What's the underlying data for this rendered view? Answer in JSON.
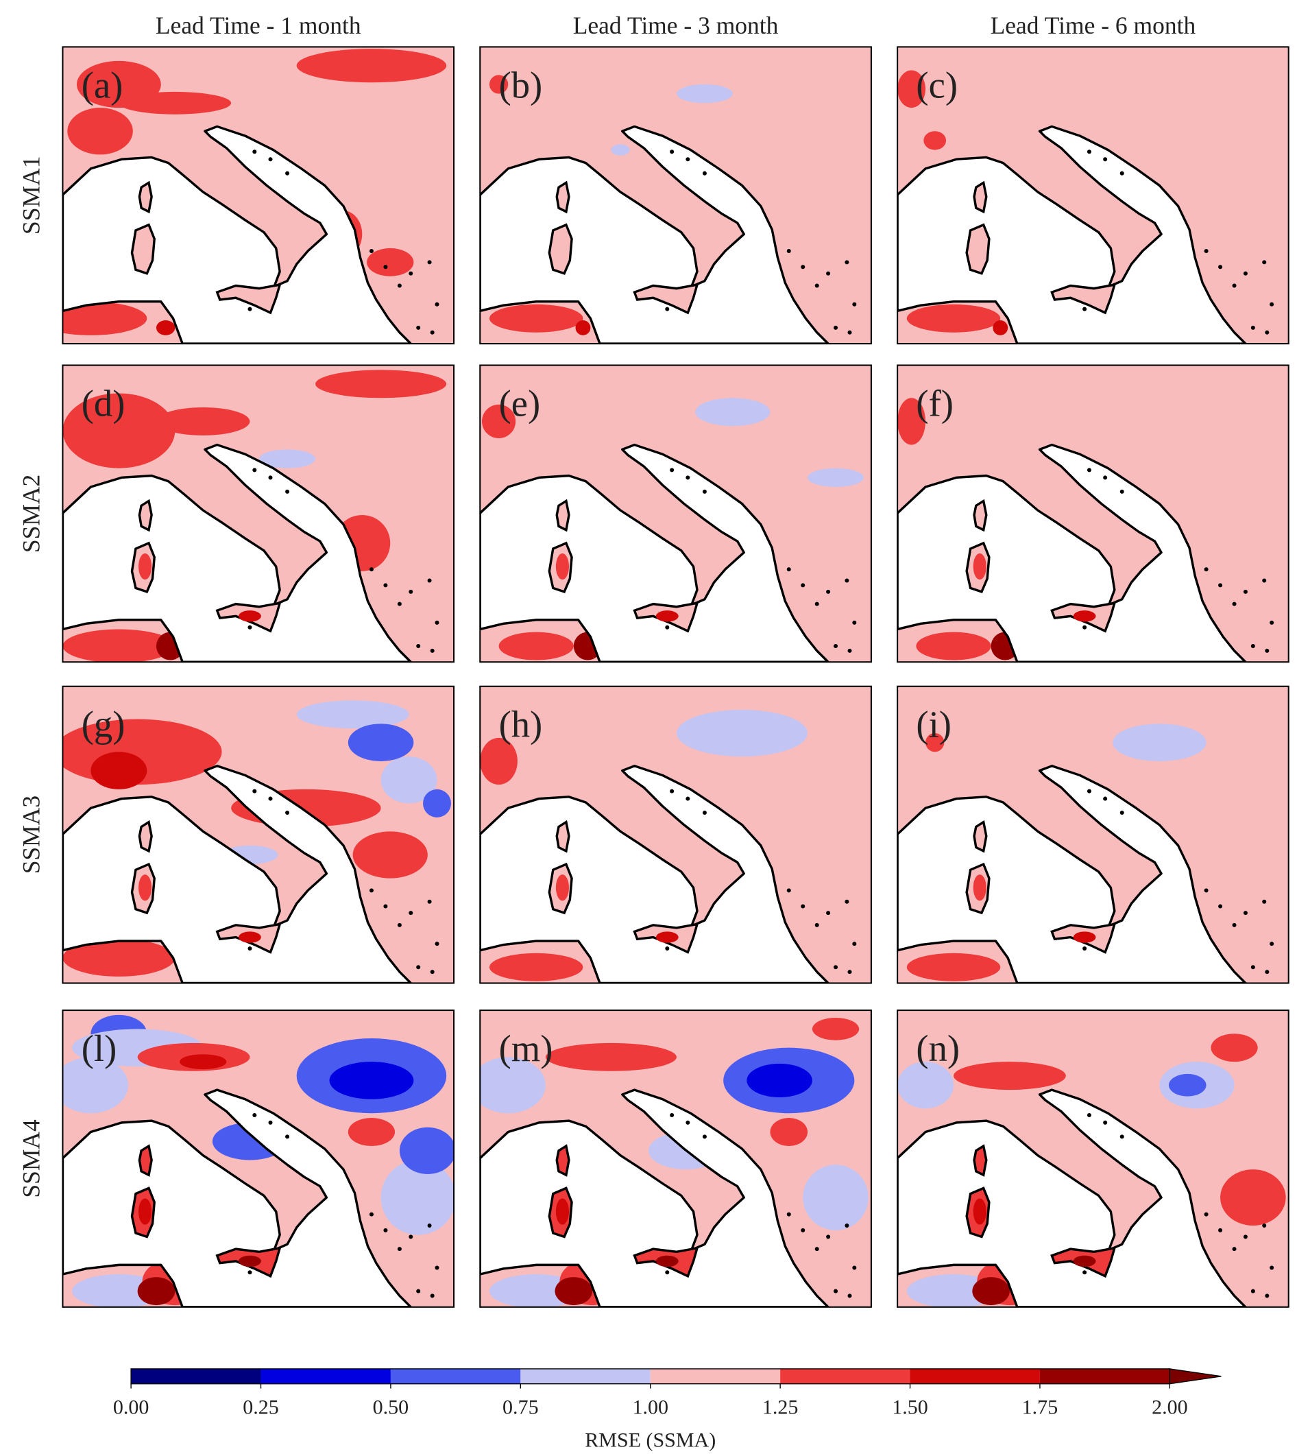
{
  "column_titles": [
    "Lead Time - 1 month",
    "Lead Time - 3 month",
    "Lead Time - 6 month"
  ],
  "row_labels": [
    "SSMA1",
    "SSMA2",
    "SSMA3",
    "SSMA4"
  ],
  "panel_labels": [
    "(a)",
    "(b)",
    "(c)",
    "(d)",
    "(e)",
    "(f)",
    "(g)",
    "(h)",
    "(i)",
    "(l)",
    "(m)",
    "(n)"
  ],
  "colorbar": {
    "label": "RMSE (SSMA)",
    "lim": [
      0,
      2
    ],
    "ticks": [
      {
        "value": 0,
        "label": "0.00"
      },
      0.25,
      {
        "value": 0.5,
        "label": "0.50"
      },
      0.75,
      {
        "value": 1,
        "label": "1.00"
      },
      1.25,
      {
        "value": 1.5,
        "label": "1.50"
      },
      1.75,
      {
        "value": 2,
        "label": "2.00"
      }
    ],
    "colors": [
      "#00007f",
      "#0000e0",
      "#4a5cf0",
      "#c2c5f3",
      "#f9bcbc",
      "#ee3a3a",
      "#d20808",
      "#960000"
    ],
    "extend": "max",
    "over_color": "#7a0000"
  }
}
